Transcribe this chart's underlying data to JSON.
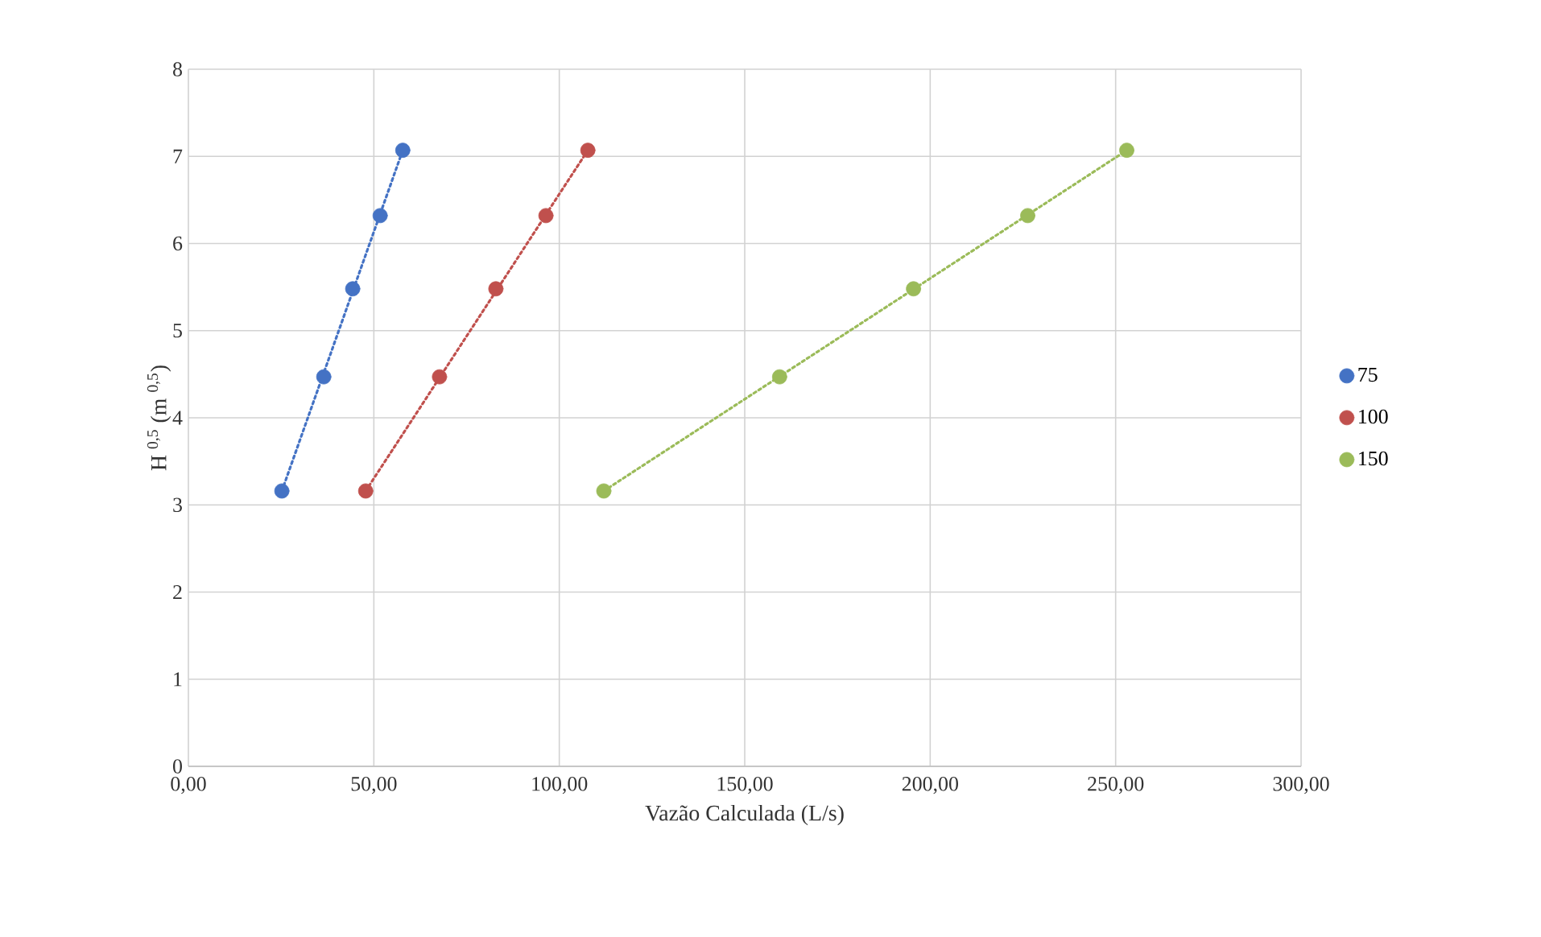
{
  "chart_data": {
    "type": "scatter",
    "xlabel": "Vazão Calculada (L/s)",
    "ylabel": "H $^{0,5}$ (m $^{0,5}$)",
    "series": [
      {
        "name": "75",
        "color": "#4472c4",
        "x": [
          25.2,
          36.5,
          44.3,
          51.7,
          57.8
        ],
        "values": [
          3.16,
          4.47,
          5.48,
          6.32,
          7.07
        ]
      },
      {
        "name": "100",
        "color": "#c0504d",
        "x": [
          47.8,
          67.7,
          82.9,
          96.4,
          107.7
        ],
        "values": [
          3.16,
          4.47,
          5.48,
          6.32,
          7.07
        ]
      },
      {
        "name": "150",
        "color": "#9bbb59",
        "x": [
          112,
          159.4,
          195.5,
          226.3,
          253
        ],
        "values": [
          3.16,
          4.47,
          5.48,
          6.32,
          7.07
        ]
      },
      {
        "type": "line",
        "color": "#4472c4",
        "x": [
          25.2,
          57.8
        ],
        "values": [
          3.16,
          7.07
        ],
        "marker": "none",
        "line_style": "dotted"
      },
      {
        "type": "line",
        "color": "#c0504d",
        "x": [
          47.8,
          107.7
        ],
        "values": [
          3.16,
          7.07
        ],
        "marker": "none",
        "line_style": "dotted"
      },
      {
        "type": "line",
        "color": "#9bbb59",
        "x": [
          112,
          253
        ],
        "values": [
          3.16,
          7.07
        ],
        "marker": "none",
        "line_style": "dotted"
      }
    ],
    "xlim": [
      0,
      300
    ],
    "ylim": [
      0,
      8
    ],
    "xticks": [
      {
        "value": 0,
        "label": "0,00"
      },
      {
        "value": 50,
        "label": "50,00"
      },
      {
        "value": 100,
        "label": "100,00"
      },
      {
        "value": 150,
        "label": "150,00"
      },
      {
        "value": 200,
        "label": "200,00"
      },
      {
        "value": 250,
        "label": "250,00"
      },
      {
        "value": 300,
        "label": "300,00"
      }
    ],
    "yticks": [
      0,
      1,
      2,
      3,
      4,
      5,
      6,
      7,
      8
    ],
    "grid": true,
    "legend": "right",
    "marker": "circle"
  }
}
